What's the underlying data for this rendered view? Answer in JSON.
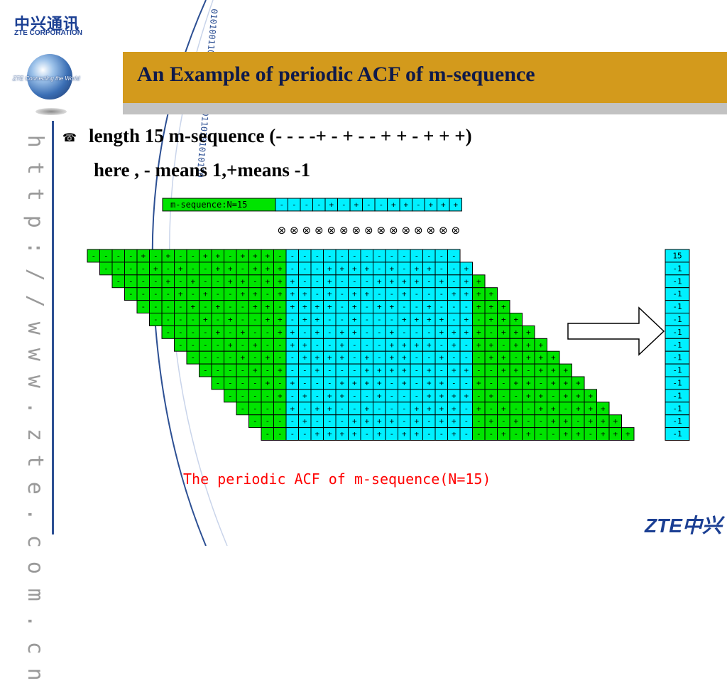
{
  "logo": {
    "chinese": "中兴通讯",
    "english": "ZTE CORPORATION",
    "globe_caption": "ZTE Connecting the World"
  },
  "side_url": "http://www.zte.com.cn",
  "decor_binary_text": "010100110101001010100110101010110",
  "title": "An Example of periodic ACF of m-sequence",
  "bullet_icon": "telephone-icon",
  "bullet_line1": "length 15 m-sequence (- - - -+ - + - - + + - + + +)",
  "bullet_line2": "here , - means 1,+means -1",
  "table": {
    "header_label": "m-sequence:N=15",
    "sequence": [
      "-",
      "-",
      "-",
      "-",
      "+",
      "-",
      "+",
      "-",
      "-",
      "+",
      "+",
      "-",
      "+",
      "+",
      "+"
    ],
    "otimes_symbol": "⊗",
    "acf": [
      "15",
      "-1",
      "-1",
      "-1",
      "-1",
      "-1",
      "-1",
      "-1",
      "-1",
      "-1",
      "-1",
      "-1",
      "-1",
      "-1",
      "-1"
    ]
  },
  "caption": "The periodic ACF of m-sequence(N=15)",
  "footer_logo": "ZTE中兴",
  "colors": {
    "title_bar": "#d39a1c",
    "cyan_cells": "#00f0ff",
    "green_cells": "#00e400",
    "caption": "#ff0000",
    "brand_blue": "#1b3f93"
  }
}
